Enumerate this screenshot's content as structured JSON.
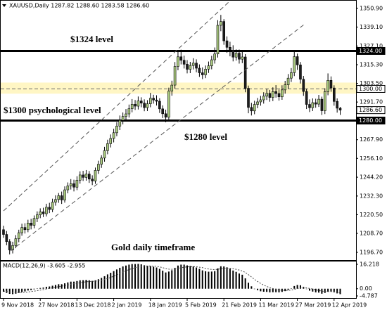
{
  "chart_data": {
    "type": "candlestick",
    "title": "XAUUSD,Daily  1287.82 1288.60 1283.58 1286.60",
    "categories": [
      "9 Nov 2018",
      null,
      null,
      null,
      null,
      null,
      null,
      null,
      null,
      null,
      null,
      null,
      "27 Nov 2018",
      null,
      null,
      null,
      null,
      null,
      null,
      null,
      null,
      null,
      null,
      null,
      "13 Dec 2018",
      null,
      null,
      null,
      null,
      null,
      null,
      null,
      null,
      null,
      null,
      null,
      "2 Jan 2019",
      null,
      null,
      null,
      null,
      null,
      null,
      null,
      null,
      null,
      null,
      null,
      "18 Jan 2019",
      null,
      null,
      null,
      null,
      null,
      null,
      null,
      null,
      null,
      null,
      null,
      "5 Feb 2019",
      null,
      null,
      null,
      null,
      null,
      null,
      null,
      null,
      null,
      null,
      null,
      "21 Feb 2019",
      null,
      null,
      null,
      null,
      null,
      null,
      null,
      null,
      null,
      null,
      null,
      "11 Mar 2019",
      null,
      null,
      null,
      null,
      null,
      null,
      null,
      null,
      null,
      null,
      null,
      "27 Mar 2019",
      null,
      null,
      null,
      null,
      null,
      null,
      null,
      null,
      null,
      null,
      null,
      "12 Apr 2019",
      null,
      null
    ],
    "open": [
      1211.0,
      1208.0,
      1203.5,
      1198.2,
      1201.0,
      1205.3,
      1209.1,
      1212.4,
      1211.0,
      1215.2,
      1213.8,
      1218.1,
      1220.4,
      1222.3,
      1221.1,
      1225.2,
      1223.8,
      1228.4,
      1230.1,
      1232.5,
      1229.8,
      1236.2,
      1238.7,
      1240.1,
      1237.9,
      1242.3,
      1245.6,
      1244.1,
      1246.2,
      1243.0,
      1241.8,
      1248.5,
      1252.4,
      1256.3,
      1261.0,
      1265.4,
      1268.7,
      1272.3,
      1276.5,
      1280.1,
      1282.6,
      1284.2,
      1287.5,
      1290.3,
      1289.1,
      1292.4,
      1291.0,
      1288.2,
      1290.6,
      1294.1,
      1293.0,
      1292.2,
      1287.4,
      1284.3,
      1282.1,
      1298.6,
      1302.4,
      1314.2,
      1320.3,
      1318.1,
      1315.6,
      1312.4,
      1314.8,
      1316.3,
      1313.1,
      1310.2,
      1308.9,
      1312.5,
      1314.6,
      1318.4,
      1322.1,
      1340.2,
      1342.6,
      1330.4,
      1326.3,
      1324.5,
      1320.1,
      1322.6,
      1318.8,
      1320.2,
      1300.4,
      1288.3,
      1286.1,
      1290.2,
      1291.8,
      1293.1,
      1295.4,
      1297.2,
      1294.6,
      1298.3,
      1297.1,
      1295.0,
      1299.4,
      1302.6,
      1306.8,
      1310.3,
      1320.4,
      1315.2,
      1306.1,
      1298.4,
      1290.2,
      1288.1,
      1291.3,
      1290.4,
      1293.5,
      1286.2,
      1298.3,
      1305.4,
      1300.6,
      1292.1,
      1287.82
    ],
    "high": [
      1213.5,
      1210.2,
      1205.0,
      1203.4,
      1207.6,
      1211.0,
      1214.8,
      1215.1,
      1217.3,
      1217.9,
      1220.0,
      1222.6,
      1224.5,
      1224.9,
      1227.4,
      1228.0,
      1230.6,
      1232.8,
      1234.2,
      1235.1,
      1238.4,
      1240.9,
      1243.0,
      1242.6,
      1244.8,
      1247.9,
      1248.2,
      1248.7,
      1248.1,
      1245.4,
      1250.3,
      1254.6,
      1258.1,
      1263.4,
      1267.9,
      1271.2,
      1274.8,
      1279.0,
      1283.2,
      1285.1,
      1287.3,
      1290.1,
      1293.6,
      1293.0,
      1295.2,
      1294.7,
      1293.4,
      1292.9,
      1297.5,
      1296.3,
      1296.0,
      1294.1,
      1289.6,
      1286.9,
      1300.8,
      1305.2,
      1317.0,
      1323.9,
      1324.8,
      1321.0,
      1318.2,
      1317.1,
      1319.4,
      1318.7,
      1315.5,
      1313.6,
      1314.8,
      1317.3,
      1320.9,
      1326.2,
      1343.5,
      1346.8,
      1344.1,
      1333.2,
      1329.8,
      1327.6,
      1325.0,
      1324.9,
      1323.5,
      1322.0,
      1302.1,
      1291.2,
      1292.5,
      1294.3,
      1295.6,
      1297.9,
      1300.1,
      1299.4,
      1301.0,
      1302.4,
      1299.6,
      1302.3,
      1305.1,
      1309.4,
      1313.2,
      1324.1,
      1322.3,
      1317.0,
      1308.2,
      1300.1,
      1293.4,
      1294.0,
      1293.8,
      1296.2,
      1295.1,
      1300.4,
      1309.8,
      1307.9,
      1302.3,
      1294.0,
      1288.6
    ],
    "low": [
      1205.9,
      1201.2,
      1195.4,
      1196.0,
      1199.3,
      1203.1,
      1207.2,
      1208.6,
      1209.4,
      1211.2,
      1211.9,
      1215.8,
      1218.3,
      1219.0,
      1219.4,
      1221.5,
      1222.1,
      1226.2,
      1228.0,
      1227.3,
      1228.1,
      1234.0,
      1236.4,
      1235.2,
      1236.0,
      1240.1,
      1241.8,
      1242.0,
      1240.6,
      1239.2,
      1240.0,
      1246.3,
      1250.1,
      1254.0,
      1258.7,
      1263.0,
      1266.2,
      1270.1,
      1274.0,
      1277.6,
      1280.3,
      1281.9,
      1285.2,
      1286.7,
      1287.0,
      1288.4,
      1285.9,
      1286.0,
      1288.4,
      1290.7,
      1289.5,
      1284.8,
      1281.6,
      1278.9,
      1280.2,
      1295.7,
      1300.1,
      1311.8,
      1315.5,
      1312.9,
      1309.8,
      1310.0,
      1312.3,
      1310.5,
      1307.6,
      1306.2,
      1306.8,
      1310.1,
      1312.4,
      1316.0,
      1319.8,
      1336.5,
      1327.9,
      1322.8,
      1320.6,
      1317.4,
      1317.9,
      1316.0,
      1316.3,
      1297.9,
      1284.6,
      1283.2,
      1284.0,
      1287.8,
      1289.4,
      1290.7,
      1293.0,
      1291.9,
      1292.3,
      1294.5,
      1292.6,
      1293.1,
      1297.0,
      1300.2,
      1304.4,
      1308.1,
      1312.0,
      1303.4,
      1295.6,
      1287.3,
      1285.4,
      1286.0,
      1288.1,
      1288.6,
      1283.5,
      1284.1,
      1296.0,
      1298.2,
      1289.4,
      1285.0,
      1283.58
    ],
    "close": [
      1208.0,
      1203.5,
      1198.2,
      1201.0,
      1205.3,
      1209.1,
      1212.4,
      1211.0,
      1215.2,
      1213.8,
      1218.1,
      1220.4,
      1222.3,
      1221.1,
      1225.2,
      1223.8,
      1228.4,
      1230.1,
      1232.5,
      1229.8,
      1236.2,
      1238.7,
      1240.1,
      1237.9,
      1242.3,
      1245.6,
      1244.1,
      1246.2,
      1243.0,
      1241.8,
      1248.5,
      1252.4,
      1256.3,
      1261.0,
      1265.4,
      1268.7,
      1272.3,
      1276.5,
      1280.1,
      1282.6,
      1284.2,
      1287.5,
      1290.3,
      1289.1,
      1292.4,
      1291.0,
      1288.2,
      1290.6,
      1294.1,
      1293.0,
      1292.2,
      1287.4,
      1284.3,
      1282.1,
      1298.6,
      1302.4,
      1314.2,
      1320.3,
      1318.1,
      1315.6,
      1312.4,
      1314.8,
      1316.3,
      1313.1,
      1310.2,
      1308.9,
      1312.5,
      1314.6,
      1318.4,
      1322.1,
      1340.2,
      1342.6,
      1330.4,
      1326.3,
      1324.5,
      1320.1,
      1322.6,
      1318.8,
      1320.2,
      1300.4,
      1288.3,
      1286.1,
      1290.2,
      1291.8,
      1293.1,
      1295.4,
      1297.2,
      1294.6,
      1298.3,
      1297.1,
      1295.0,
      1299.4,
      1302.6,
      1306.8,
      1310.3,
      1320.4,
      1315.2,
      1306.1,
      1298.4,
      1290.2,
      1288.1,
      1291.3,
      1290.4,
      1293.5,
      1286.2,
      1298.3,
      1305.4,
      1300.6,
      1292.1,
      1287.82,
      1286.6
    ],
    "up_color": "#a9c97e",
    "down_color": "#1e1e1e",
    "ylim": [
      1191.8,
      1356.2
    ],
    "yticks": [
      {
        "value": 1350.9,
        "label": "1350.90"
      },
      {
        "value": 1339.1,
        "label": "1339.10"
      },
      {
        "value": 1327.1,
        "label": "1327.10"
      },
      {
        "value": 1315.3,
        "label": "1315.30"
      },
      {
        "value": 1303.5,
        "label": "1303.50"
      },
      {
        "value": 1291.7,
        "label": "1291.70"
      },
      {
        "value": 1267.9,
        "label": "1267.90"
      },
      {
        "value": 1256.1,
        "label": "1256.10"
      },
      {
        "value": 1244.2,
        "label": "1244.20"
      },
      {
        "value": 1232.3,
        "label": "1232.30"
      },
      {
        "value": 1220.5,
        "label": "1220.50"
      },
      {
        "value": 1208.7,
        "label": "1208.70"
      },
      {
        "value": 1196.7,
        "label": "1196.70"
      }
    ],
    "hlines": [
      {
        "value": 1324,
        "style": "solid"
      },
      {
        "value": 1300,
        "style": "dashed"
      },
      {
        "value": 1280,
        "style": "solid"
      }
    ],
    "highlight_band": [
      1297,
      1304
    ],
    "price_labels": [
      {
        "value": 1324,
        "label": "1324.00",
        "style": "filled"
      },
      {
        "value": 1300,
        "label": "1300.00",
        "style": "outline"
      },
      {
        "value": 1286.6,
        "label": "1286.60",
        "style": "outline"
      },
      {
        "value": 1280,
        "label": "1280.00",
        "style": "filled"
      }
    ],
    "annotations": [
      "$1324 level",
      "$1300 psychological level",
      "$1280 level",
      "Gold daily timeframe"
    ],
    "macd": {
      "title": "MACD(12,26,9) -3.605 -2.955",
      "values": [
        -2.0,
        -2.8,
        -3.4,
        -3.6,
        -3.3,
        -2.8,
        -2.2,
        -1.8,
        -1.2,
        -0.9,
        -0.4,
        0.1,
        0.5,
        0.8,
        1.3,
        1.5,
        2.0,
        2.5,
        3.0,
        3.0,
        3.6,
        4.2,
        4.7,
        4.7,
        5.1,
        5.6,
        5.7,
        5.9,
        5.6,
        5.2,
        5.6,
        6.3,
        7.2,
        8.3,
        9.5,
        10.6,
        11.7,
        12.8,
        13.9,
        14.8,
        15.4,
        16.0,
        16.4,
        16.4,
        16.5,
        16.2,
        15.6,
        15.2,
        15.0,
        14.6,
        14.1,
        13.2,
        12.0,
        10.8,
        11.4,
        12.3,
        13.9,
        15.4,
        16.0,
        16.0,
        15.5,
        15.1,
        14.8,
        14.1,
        13.2,
        12.2,
        11.6,
        11.3,
        11.4,
        11.7,
        13.5,
        14.9,
        14.8,
        14.2,
        13.3,
        12.1,
        11.2,
        10.1,
        9.3,
        6.9,
        4.0,
        1.6,
        0.0,
        -1.0,
        -1.7,
        -2.0,
        -2.1,
        -2.4,
        -2.3,
        -2.3,
        -2.4,
        -2.1,
        -1.6,
        -0.8,
        0.2,
        1.8,
        2.5,
        2.3,
        1.3,
        -0.1,
        -1.3,
        -1.9,
        -2.4,
        -2.6,
        -3.3,
        -2.8,
        -2.0,
        -1.9,
        -2.4,
        -3.1,
        -3.605
      ],
      "signal": [
        -1.5,
        -1.8,
        -2.1,
        -2.4,
        -2.6,
        -2.6,
        -2.5,
        -2.4,
        -2.2,
        -1.9,
        -1.6,
        -1.3,
        -0.9,
        -0.6,
        -0.2,
        0.2,
        0.6,
        1.0,
        1.4,
        1.7,
        2.1,
        2.5,
        2.9,
        3.3,
        3.6,
        4.0,
        4.3,
        4.6,
        4.8,
        4.9,
        5.0,
        5.3,
        5.6,
        6.1,
        6.8,
        7.5,
        8.3,
        9.2,
        10.1,
        11.0,
        11.9,
        12.7,
        13.4,
        14.0,
        14.5,
        14.9,
        15.1,
        15.1,
        15.1,
        15.0,
        14.9,
        14.5,
        14.0,
        13.4,
        13.0,
        12.9,
        13.1,
        13.5,
        13.9,
        14.3,
        14.5,
        14.6,
        14.7,
        14.6,
        14.3,
        14.0,
        13.5,
        13.1,
        12.8,
        12.7,
        12.9,
        13.3,
        13.6,
        13.7,
        13.6,
        13.3,
        12.9,
        12.4,
        11.8,
        10.8,
        9.4,
        7.8,
        6.2,
        4.8,
        3.5,
        2.4,
        1.5,
        0.7,
        0.1,
        -0.4,
        -0.8,
        -1.1,
        -1.2,
        -1.1,
        -0.9,
        -0.4,
        0.1,
        0.6,
        0.8,
        0.6,
        0.2,
        -0.2,
        -0.7,
        -1.1,
        -1.6,
        -1.9,
        -1.9,
        -1.9,
        -2.0,
        -2.2,
        -2.955
      ],
      "color": "#000000",
      "ylim": [
        -6.66,
        18.55
      ],
      "yticks": [
        16.218,
        {
          "value": 0,
          "label": "0.00"
        },
        -4.787
      ]
    }
  }
}
